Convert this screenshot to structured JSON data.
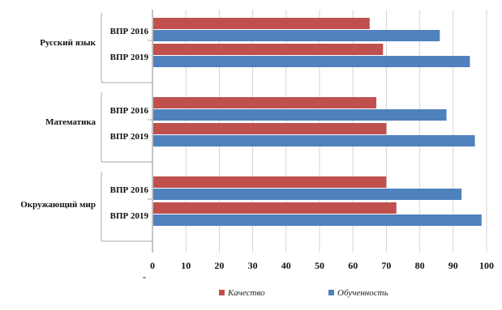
{
  "chart_data": {
    "type": "bar",
    "orientation": "horizontal",
    "groups": [
      {
        "label": "Русский язык",
        "rows": [
          {
            "label": "ВПР 2016",
            "values": [
              65,
              86
            ]
          },
          {
            "label": "ВПР 2019",
            "values": [
              69,
              95
            ]
          }
        ]
      },
      {
        "label": "Математика",
        "rows": [
          {
            "label": "ВПР 2016",
            "values": [
              67,
              88
            ]
          },
          {
            "label": "ВПР 2019",
            "values": [
              70,
              96.5
            ]
          }
        ]
      },
      {
        "label": "Окружающий мир",
        "rows": [
          {
            "label": "ВПР 2016",
            "values": [
              70,
              92.5
            ]
          },
          {
            "label": "ВПР 2019",
            "values": [
              73,
              98.5
            ]
          }
        ]
      }
    ],
    "series": [
      {
        "name": "Качество",
        "color": "#c0504d"
      },
      {
        "name": "Обученность",
        "color": "#4f81bd"
      }
    ],
    "x_ticks": [
      "0",
      "10",
      "20",
      "30",
      "40",
      "50",
      "60",
      "70",
      "80",
      "90",
      "100"
    ],
    "xlim": [
      0,
      100
    ],
    "grid": true,
    "legend_position": "bottom",
    "extra_mark": "-"
  }
}
